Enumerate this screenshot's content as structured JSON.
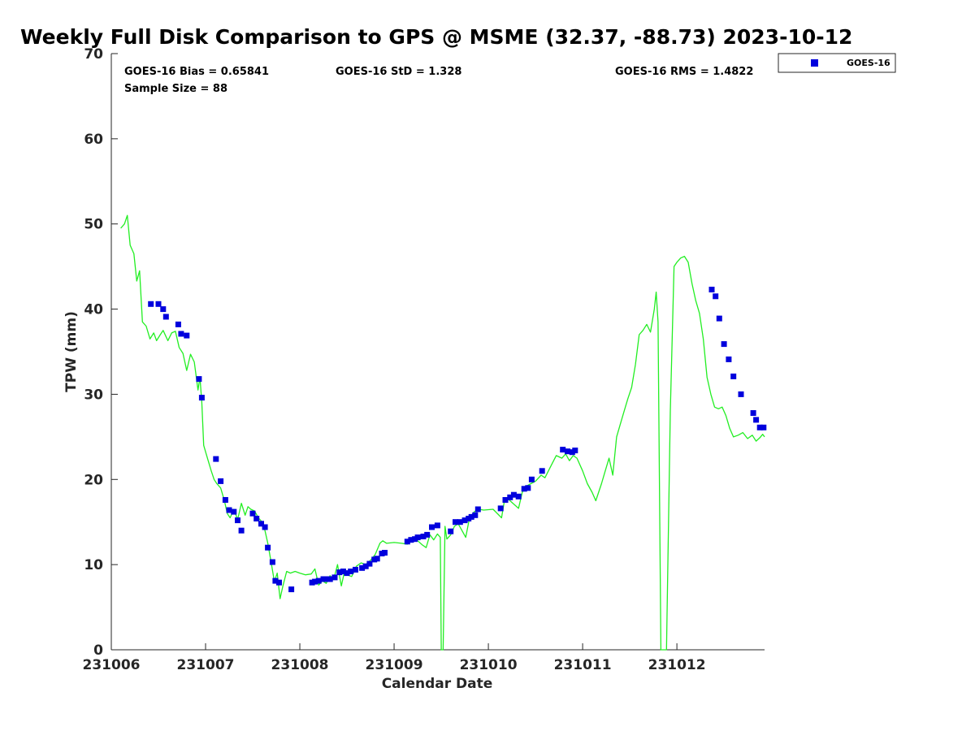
{
  "chart_data": {
    "type": "scatter",
    "title": "Weekly Full Disk Comparison to GPS @ MSME (32.37, -88.73) 2023-10-12",
    "xlabel": "Calendar Date",
    "ylabel": "TPW (mm)",
    "xlim": [
      231006,
      231012.93
    ],
    "ylim": [
      0,
      70
    ],
    "x_ticks": [
      231006,
      231007,
      231008,
      231009,
      231010,
      231011,
      231012
    ],
    "x_tick_labels": [
      "231006",
      "231007",
      "231008",
      "231009",
      "231010",
      "231011",
      "231012"
    ],
    "y_ticks": [
      0,
      10,
      20,
      30,
      40,
      50,
      60,
      70
    ],
    "y_tick_labels": [
      "0",
      "10",
      "20",
      "30",
      "40",
      "50",
      "60",
      "70"
    ],
    "grid": false,
    "stats": {
      "bias": "GOES-16 Bias = 0.65841",
      "std": "GOES-16 StD = 1.328",
      "rms": "GOES-16 RMS = 1.4822",
      "sample_size": "Sample Size = 88"
    },
    "legend": {
      "position": "top-right",
      "entries": [
        "GOES-16"
      ]
    },
    "colors": {
      "goes16": "#0000dd",
      "gps": "#22ee22"
    },
    "series": [
      {
        "name": "GOES-16",
        "kind": "markers",
        "x": [
          231006.42,
          231006.5,
          231006.55,
          231006.58,
          231006.71,
          231006.74,
          231006.8,
          231006.93,
          231006.96,
          231007.11,
          231007.16,
          231007.21,
          231007.25,
          231007.3,
          231007.34,
          231007.38,
          231007.5,
          231007.54,
          231007.59,
          231007.63,
          231007.66,
          231007.71,
          231007.74,
          231007.78,
          231007.91,
          231008.13,
          231008.16,
          231008.2,
          231008.25,
          231008.28,
          231008.32,
          231008.37,
          231008.42,
          231008.46,
          231008.5,
          231008.54,
          231008.59,
          231008.66,
          231008.7,
          231008.74,
          231008.79,
          231008.82,
          231008.87,
          231008.9,
          231009.14,
          231009.18,
          231009.22,
          231009.25,
          231009.31,
          231009.35,
          231009.4,
          231009.46,
          231009.6,
          231009.65,
          231009.7,
          231009.75,
          231009.79,
          231009.82,
          231009.86,
          231009.89,
          231010.13,
          231010.18,
          231010.23,
          231010.27,
          231010.32,
          231010.38,
          231010.42,
          231010.46,
          231010.57,
          231010.79,
          231010.84,
          231010.89,
          231010.92,
          231012.37,
          231012.41,
          231012.45,
          231012.5,
          231012.55,
          231012.6,
          231012.68,
          231012.81,
          231012.84,
          231012.88,
          231012.92
        ],
        "y": [
          40.6,
          40.6,
          40.0,
          39.1,
          38.2,
          37.1,
          36.9,
          31.8,
          29.6,
          22.4,
          19.8,
          17.6,
          16.4,
          16.2,
          15.2,
          14.0,
          16.0,
          15.4,
          14.8,
          14.4,
          12.0,
          10.3,
          8.1,
          7.9,
          7.1,
          7.9,
          8.0,
          8.1,
          8.3,
          8.3,
          8.3,
          8.5,
          9.1,
          9.2,
          9.0,
          9.2,
          9.4,
          9.6,
          9.8,
          10.1,
          10.6,
          10.7,
          11.3,
          11.4,
          12.7,
          12.9,
          13.0,
          13.2,
          13.3,
          13.5,
          14.4,
          14.6,
          13.9,
          15.0,
          15.0,
          15.2,
          15.4,
          15.6,
          15.8,
          16.5,
          16.6,
          17.6,
          17.9,
          18.2,
          18.0,
          18.9,
          19.0,
          20.0,
          21.0,
          23.5,
          23.3,
          23.2,
          23.4,
          42.3,
          41.5,
          38.9,
          35.9,
          34.1,
          32.1,
          30.0,
          27.8,
          27.0,
          26.1,
          26.1
        ]
      },
      {
        "name": "GPS",
        "kind": "line",
        "x": [
          231006.1,
          231006.14,
          231006.17,
          231006.2,
          231006.24,
          231006.27,
          231006.3,
          231006.33,
          231006.37,
          231006.41,
          231006.45,
          231006.48,
          231006.52,
          231006.55,
          231006.6,
          231006.64,
          231006.68,
          231006.72,
          231006.76,
          231006.8,
          231006.84,
          231006.88,
          231006.92,
          231006.94,
          231006.96,
          231006.98,
          231007.02,
          231007.06,
          231007.09,
          231007.12,
          231007.16,
          231007.2,
          231007.23,
          231007.26,
          231007.3,
          231007.34,
          231007.38,
          231007.42,
          231007.45,
          231007.48,
          231007.52,
          231007.56,
          231007.6,
          231007.63,
          231007.66,
          231007.7,
          231007.73,
          231007.76,
          231007.79,
          231007.82,
          231007.86,
          231007.9,
          231007.95,
          231008.0,
          231008.06,
          231008.12,
          231008.16,
          231008.2,
          231008.24,
          231008.28,
          231008.32,
          231008.36,
          231008.4,
          231008.44,
          231008.47,
          231008.5,
          231008.55,
          231008.6,
          231008.65,
          231008.7,
          231008.75,
          231008.8,
          231008.85,
          231008.88,
          231008.92,
          231009.0,
          231009.08,
          231009.14,
          231009.2,
          231009.25,
          231009.3,
          231009.34,
          231009.38,
          231009.42,
          231009.46,
          231009.49,
          231009.5,
          231009.52,
          231009.54,
          231009.56,
          231009.6,
          231009.64,
          231009.68,
          231009.72,
          231009.76,
          231009.8,
          231009.85,
          231009.9,
          231009.95,
          231010.05,
          231010.14,
          231010.17,
          231010.2,
          231010.26,
          231010.32,
          231010.36,
          231010.4,
          231010.45,
          231010.5,
          231010.56,
          231010.6,
          231010.66,
          231010.72,
          231010.78,
          231010.82,
          231010.86,
          231010.9,
          231010.94,
          231011.0,
          231011.05,
          231011.1,
          231011.14,
          231011.2,
          231011.24,
          231011.28,
          231011.32,
          231011.36,
          231011.4,
          231011.44,
          231011.48,
          231011.52,
          231011.56,
          231011.6,
          231011.64,
          231011.68,
          231011.72,
          231011.76,
          231011.78,
          231011.8,
          231011.83,
          231011.87,
          231011.89,
          231011.93,
          231011.97,
          231012.0,
          231012.04,
          231012.08,
          231012.12,
          231012.16,
          231012.2,
          231012.24,
          231012.28,
          231012.32,
          231012.36,
          231012.4,
          231012.44,
          231012.48,
          231012.52,
          231012.56,
          231012.6,
          231012.65,
          231012.7,
          231012.75,
          231012.8,
          231012.84,
          231012.88,
          231012.91,
          231012.93
        ],
        "y": [
          49.5,
          50.0,
          51.0,
          47.5,
          46.5,
          43.3,
          44.5,
          38.5,
          38.0,
          36.5,
          37.2,
          36.3,
          37.0,
          37.5,
          36.3,
          37.2,
          37.4,
          35.5,
          34.8,
          32.8,
          34.7,
          33.8,
          30.5,
          32.0,
          29.0,
          24.0,
          22.5,
          21.0,
          20.0,
          19.5,
          19.0,
          17.5,
          16.0,
          15.5,
          16.5,
          15.3,
          17.2,
          15.8,
          16.8,
          16.5,
          16.3,
          15.5,
          15.0,
          14.0,
          12.5,
          10.0,
          8.0,
          9.0,
          6.0,
          7.5,
          9.2,
          9.0,
          9.2,
          9.0,
          8.8,
          8.9,
          9.5,
          7.6,
          8.1,
          7.8,
          8.7,
          8.3,
          10.0,
          7.5,
          9.0,
          8.8,
          8.6,
          9.8,
          10.2,
          10.0,
          10.5,
          11.2,
          12.5,
          12.8,
          12.5,
          12.6,
          12.5,
          12.4,
          13.0,
          12.8,
          12.3,
          12.0,
          13.5,
          12.9,
          13.6,
          13.2,
          0,
          0,
          14.5,
          13.0,
          13.5,
          14.5,
          14.8,
          14.0,
          13.2,
          15.5,
          16.2,
          16.5,
          16.4,
          16.5,
          15.5,
          17.5,
          17.8,
          17.2,
          16.6,
          18.5,
          19.2,
          19.5,
          19.8,
          20.5,
          20.2,
          21.5,
          22.8,
          22.5,
          23.0,
          22.2,
          22.8,
          22.5,
          21.0,
          19.5,
          18.5,
          17.5,
          19.5,
          21.0,
          22.5,
          20.5,
          25.0,
          26.5,
          28.0,
          29.5,
          30.8,
          33.5,
          37.0,
          37.5,
          38.2,
          37.3,
          40.0,
          42.0,
          38.5,
          0,
          0,
          0,
          28.0,
          45.0,
          45.5,
          46.0,
          46.2,
          45.5,
          43.0,
          41.0,
          39.5,
          36.5,
          32.0,
          30.0,
          28.5,
          28.3,
          28.5,
          27.5,
          26.0,
          25.0,
          25.2,
          25.5,
          24.8,
          25.2,
          24.5,
          24.9,
          25.3,
          25.0
        ]
      }
    ]
  }
}
